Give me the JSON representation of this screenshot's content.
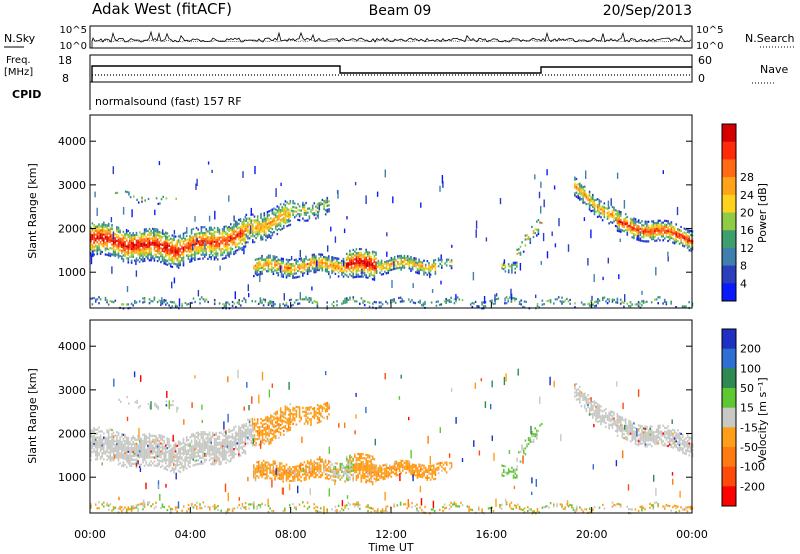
{
  "header": {
    "station": "Adak West (fitACF)",
    "beam": "Beam 09",
    "date": "20/Sep/2013"
  },
  "noise_panel": {
    "left_label": "N.Sky",
    "right_label": "N.Search",
    "left_ticks": [
      "10^5",
      "10^0"
    ],
    "right_ticks": [
      "10^5",
      "10^0"
    ]
  },
  "freq_panel": {
    "left_label_line1": "Freq.",
    "left_label_line2": "[MHz]",
    "left_ticks": [
      "18",
      "8"
    ],
    "right_label": "Nave",
    "right_ticks": [
      "60",
      "0"
    ],
    "cpid_label": "CPID",
    "cpid_text": "normalsound (fast) 157 RF"
  },
  "chart_data": [
    {
      "type": "heatmap",
      "name": "power",
      "ylabel": "Slant Range [km]",
      "ylim": [
        180,
        4600
      ],
      "y_ticks": [
        "1000",
        "2000",
        "3000",
        "4000"
      ],
      "colorbar": {
        "label": "Power [dB]",
        "ticks": [
          "4",
          "8",
          "12",
          "16",
          "20",
          "24",
          "28"
        ],
        "colors": [
          "#0a1aff",
          "#2b3fbd",
          "#3f7fae",
          "#3e9e6e",
          "#8fcc44",
          "#ffd21e",
          "#ffa318",
          "#ff6a12",
          "#ff2a0a",
          "#d40000"
        ]
      }
    },
    {
      "type": "heatmap",
      "name": "velocity",
      "ylabel": "Slant Range [km]",
      "ylim": [
        180,
        4600
      ],
      "y_ticks": [
        "1000",
        "2000",
        "3000",
        "4000"
      ],
      "x_ticks": [
        "00:00",
        "04:00",
        "08:00",
        "12:00",
        "16:00",
        "20:00",
        "00:00"
      ],
      "xlabel": "Time UT",
      "colorbar": {
        "label": "Velocity [m s⁻¹]",
        "ticks": [
          "200",
          "100",
          "50",
          "15",
          "-15",
          "-50",
          "-100",
          "-200"
        ],
        "colors": [
          "#2030c0",
          "#2f6ed2",
          "#2e8a50",
          "#5ec832",
          "#c8c8c4",
          "#ff9e18",
          "#ff7a10",
          "#ff4a0c",
          "#ff0000"
        ]
      }
    }
  ]
}
